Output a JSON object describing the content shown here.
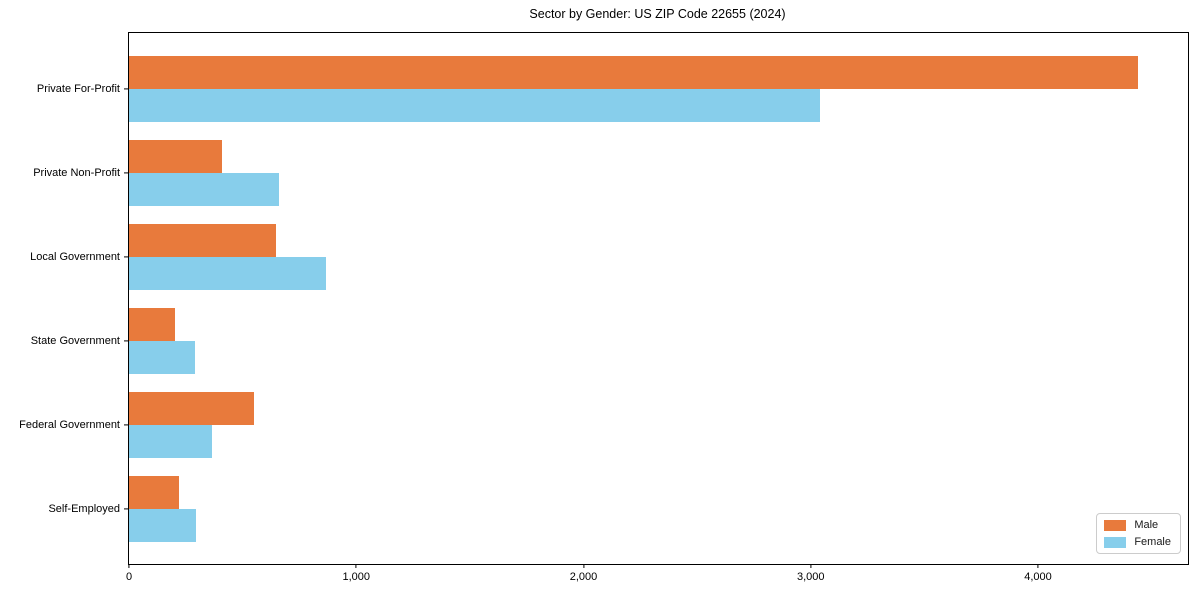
{
  "title": "Sector by Gender: US ZIP Code 22655 (2024)",
  "chart_data": {
    "type": "bar",
    "orientation": "horizontal",
    "title": "Sector by Gender: US ZIP Code 22655 (2024)",
    "categories": [
      "Private For-Profit",
      "Private Non-Profit",
      "Local Government",
      "State Government",
      "Federal Government",
      "Self-Employed"
    ],
    "series": [
      {
        "name": "Male",
        "color": "#e87a3c",
        "values": [
          4440,
          410,
          645,
          200,
          550,
          220
        ]
      },
      {
        "name": "Female",
        "color": "#87ceeb",
        "values": [
          3040,
          660,
          865,
          290,
          365,
          295
        ]
      }
    ],
    "xlabel": "",
    "ylabel": "",
    "xlim": [
      0,
      4660
    ],
    "xticks": [
      0,
      1000,
      2000,
      3000,
      4000
    ],
    "xtick_labels": [
      "0",
      "1,000",
      "2,000",
      "3,000",
      "4,000"
    ],
    "legend_position": "lower right",
    "grid": false,
    "background": "#ffffff",
    "spine_color": "#000000"
  },
  "legend": {
    "items": [
      {
        "label": "Male",
        "color": "#e87a3c"
      },
      {
        "label": "Female",
        "color": "#87ceeb"
      }
    ]
  }
}
